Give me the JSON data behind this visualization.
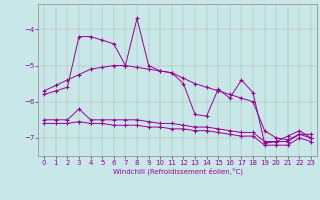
{
  "xlabel": "Windchill (Refroidissement éolien,°C)",
  "bg_color": "#c8e8e8",
  "line_color": "#990099",
  "xlim": [
    -0.5,
    23.5
  ],
  "ylim": [
    -7.5,
    -3.3
  ],
  "yticks": [
    -7,
    -6,
    -5,
    -4
  ],
  "xticks": [
    0,
    1,
    2,
    3,
    4,
    5,
    6,
    7,
    8,
    9,
    10,
    11,
    12,
    13,
    14,
    15,
    16,
    17,
    18,
    19,
    20,
    21,
    22,
    23
  ],
  "curve1_x": [
    0,
    1,
    2,
    3,
    4,
    5,
    6,
    7,
    8,
    9,
    10,
    11,
    12,
    13,
    14,
    15,
    16,
    17,
    18,
    19,
    20,
    21,
    22,
    23
  ],
  "curve1_y": [
    -5.8,
    -5.7,
    -5.6,
    -4.2,
    -4.2,
    -4.3,
    -4.4,
    -5.0,
    -3.7,
    -5.0,
    -5.15,
    -5.2,
    -5.5,
    -6.35,
    -6.4,
    -5.65,
    -5.9,
    -5.4,
    -5.75,
    -7.15,
    -7.1,
    -6.95,
    -6.8,
    -7.0
  ],
  "curve2_x": [
    0,
    1,
    2,
    3,
    4,
    5,
    6,
    7,
    8,
    9,
    10,
    11,
    12,
    13,
    14,
    15,
    16,
    17,
    18,
    19,
    20,
    21,
    22,
    23
  ],
  "curve2_y": [
    -5.7,
    -5.55,
    -5.4,
    -5.25,
    -5.1,
    -5.05,
    -5.0,
    -5.0,
    -5.05,
    -5.1,
    -5.15,
    -5.2,
    -5.35,
    -5.5,
    -5.6,
    -5.7,
    -5.8,
    -5.9,
    -6.0,
    -6.8,
    -7.0,
    -7.05,
    -6.9,
    -6.9
  ],
  "curve3_x": [
    0,
    1,
    2,
    3,
    4,
    5,
    6,
    7,
    8,
    9,
    10,
    11,
    12,
    13,
    14,
    15,
    16,
    17,
    18,
    19,
    20,
    21,
    22,
    23
  ],
  "curve3_y": [
    -6.5,
    -6.5,
    -6.5,
    -6.2,
    -6.5,
    -6.5,
    -6.5,
    -6.5,
    -6.5,
    -6.55,
    -6.6,
    -6.6,
    -6.65,
    -6.7,
    -6.7,
    -6.75,
    -6.8,
    -6.85,
    -6.85,
    -7.1,
    -7.1,
    -7.1,
    -6.9,
    -7.0
  ],
  "curve4_x": [
    0,
    1,
    2,
    3,
    4,
    5,
    6,
    7,
    8,
    9,
    10,
    11,
    12,
    13,
    14,
    15,
    16,
    17,
    18,
    19,
    20,
    21,
    22,
    23
  ],
  "curve4_y": [
    -6.6,
    -6.6,
    -6.6,
    -6.55,
    -6.6,
    -6.6,
    -6.65,
    -6.65,
    -6.65,
    -6.7,
    -6.7,
    -6.75,
    -6.75,
    -6.8,
    -6.8,
    -6.85,
    -6.9,
    -6.95,
    -6.95,
    -7.2,
    -7.2,
    -7.2,
    -7.0,
    -7.1
  ]
}
